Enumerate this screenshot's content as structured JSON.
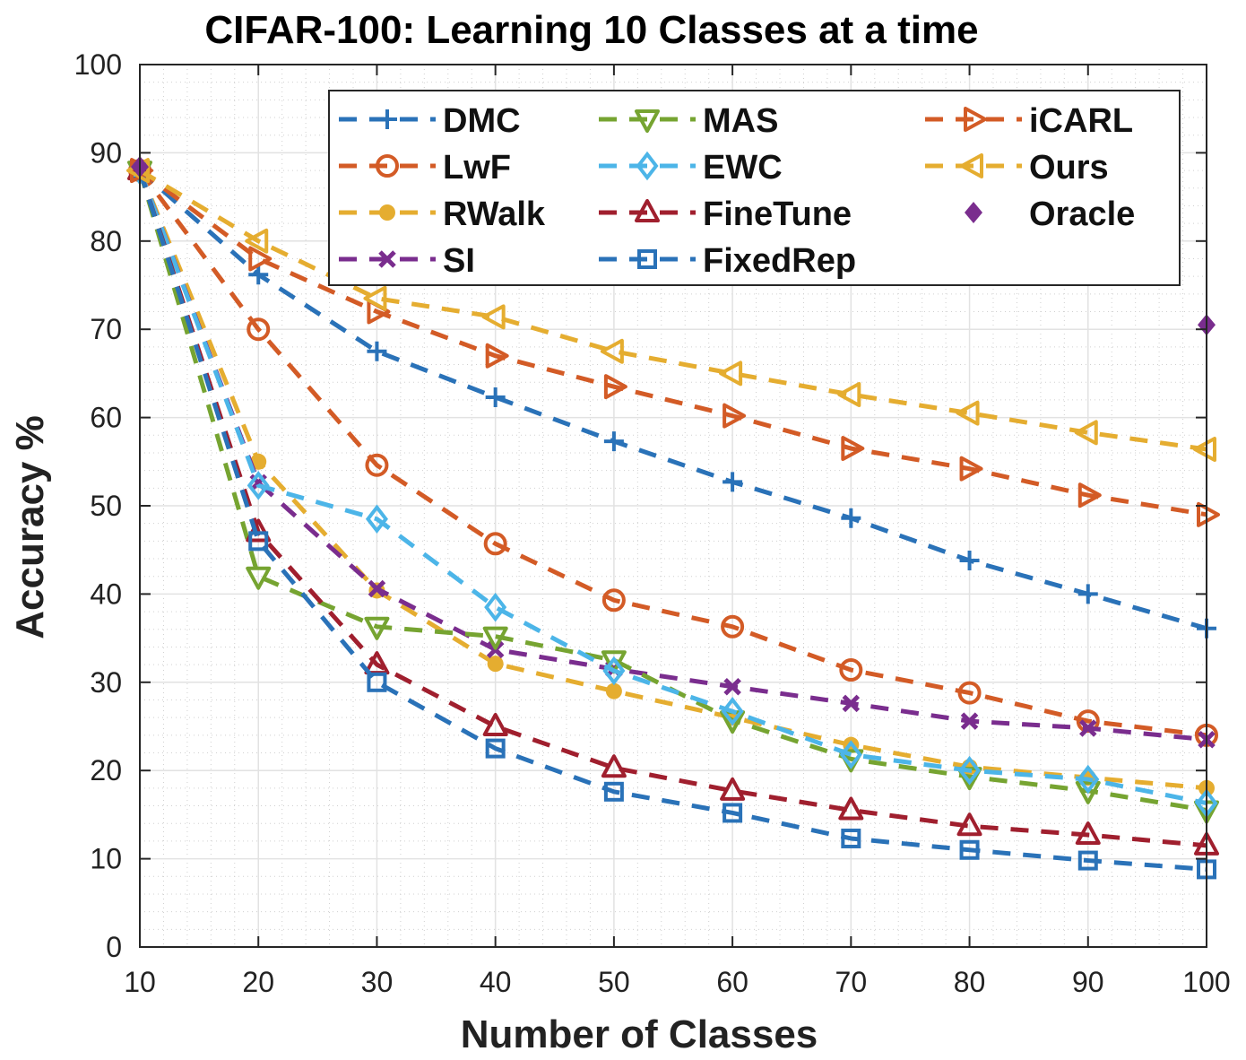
{
  "chart_data": {
    "type": "line",
    "title": "CIFAR-100: Learning 10 Classes at a time",
    "xlabel": "Number of Classes",
    "ylabel": "Accuracy %",
    "xlim": [
      10,
      100
    ],
    "ylim": [
      0,
      100
    ],
    "xticks": [
      "10",
      "20",
      "30",
      "40",
      "50",
      "60",
      "70",
      "80",
      "90",
      "100"
    ],
    "yticks": [
      "0",
      "10",
      "20",
      "30",
      "40",
      "50",
      "60",
      "70",
      "80",
      "90",
      "100"
    ],
    "grid": true,
    "legend_position": "top-right",
    "x": [
      10,
      20,
      30,
      40,
      50,
      60,
      70,
      80,
      90,
      100
    ],
    "series": [
      {
        "name": "DMC",
        "color": "#2a72b8",
        "marker": "plus",
        "values": [
          88,
          76.2,
          67.5,
          62.3,
          57.3,
          52.7,
          48.6,
          43.8,
          40,
          36.1
        ]
      },
      {
        "name": "LwF",
        "color": "#d35b26",
        "marker": "circle",
        "values": [
          88,
          70,
          54.6,
          45.7,
          39.3,
          36.3,
          31.4,
          28.8,
          25.6,
          24
        ]
      },
      {
        "name": "RWalk",
        "color": "#e5ad30",
        "marker": "dot",
        "values": [
          88,
          55,
          40.4,
          32.1,
          29,
          26,
          22.9,
          20.4,
          19.2,
          18
        ]
      },
      {
        "name": "SI",
        "color": "#7a2d8e",
        "marker": "x",
        "values": [
          88,
          52.6,
          40.6,
          33.7,
          31.5,
          29.5,
          27.6,
          25.6,
          24.8,
          23.5
        ]
      },
      {
        "name": "MAS",
        "color": "#76a431",
        "marker": "triangle-down",
        "values": [
          88,
          42,
          36.3,
          35.2,
          32.5,
          25.7,
          21.3,
          19.3,
          17.7,
          15.5
        ]
      },
      {
        "name": "EWC",
        "color": "#4cb5e8",
        "marker": "diamond",
        "values": [
          88,
          52.3,
          48.5,
          38.5,
          31.3,
          26.7,
          21.8,
          20,
          19,
          16.3
        ]
      },
      {
        "name": "FineTune",
        "color": "#a01f2e",
        "marker": "triangle-up",
        "values": [
          88,
          47,
          32,
          25,
          20.3,
          17.7,
          15.5,
          13.7,
          12.7,
          11.5
        ]
      },
      {
        "name": "FixedRep",
        "color": "#2a72b8",
        "marker": "square",
        "values": [
          88,
          46,
          30,
          22.5,
          17.6,
          15.2,
          12.3,
          11,
          9.8,
          8.8
        ]
      },
      {
        "name": "iCARL",
        "color": "#d35b26",
        "marker": "triangle-right",
        "values": [
          88,
          78,
          72,
          67,
          63.5,
          60.2,
          56.5,
          54.2,
          51.2,
          49
        ]
      },
      {
        "name": "Ours",
        "color": "#e5ad30",
        "marker": "triangle-left",
        "values": [
          88,
          80,
          73.5,
          71.4,
          67.5,
          65,
          62.6,
          60.5,
          58.3,
          56.4
        ]
      },
      {
        "name": "Oracle",
        "color": "#7a2d8e",
        "marker": "diamond-filled",
        "values": [
          88.4,
          null,
          null,
          null,
          null,
          null,
          null,
          null,
          null,
          70.5
        ]
      }
    ]
  }
}
